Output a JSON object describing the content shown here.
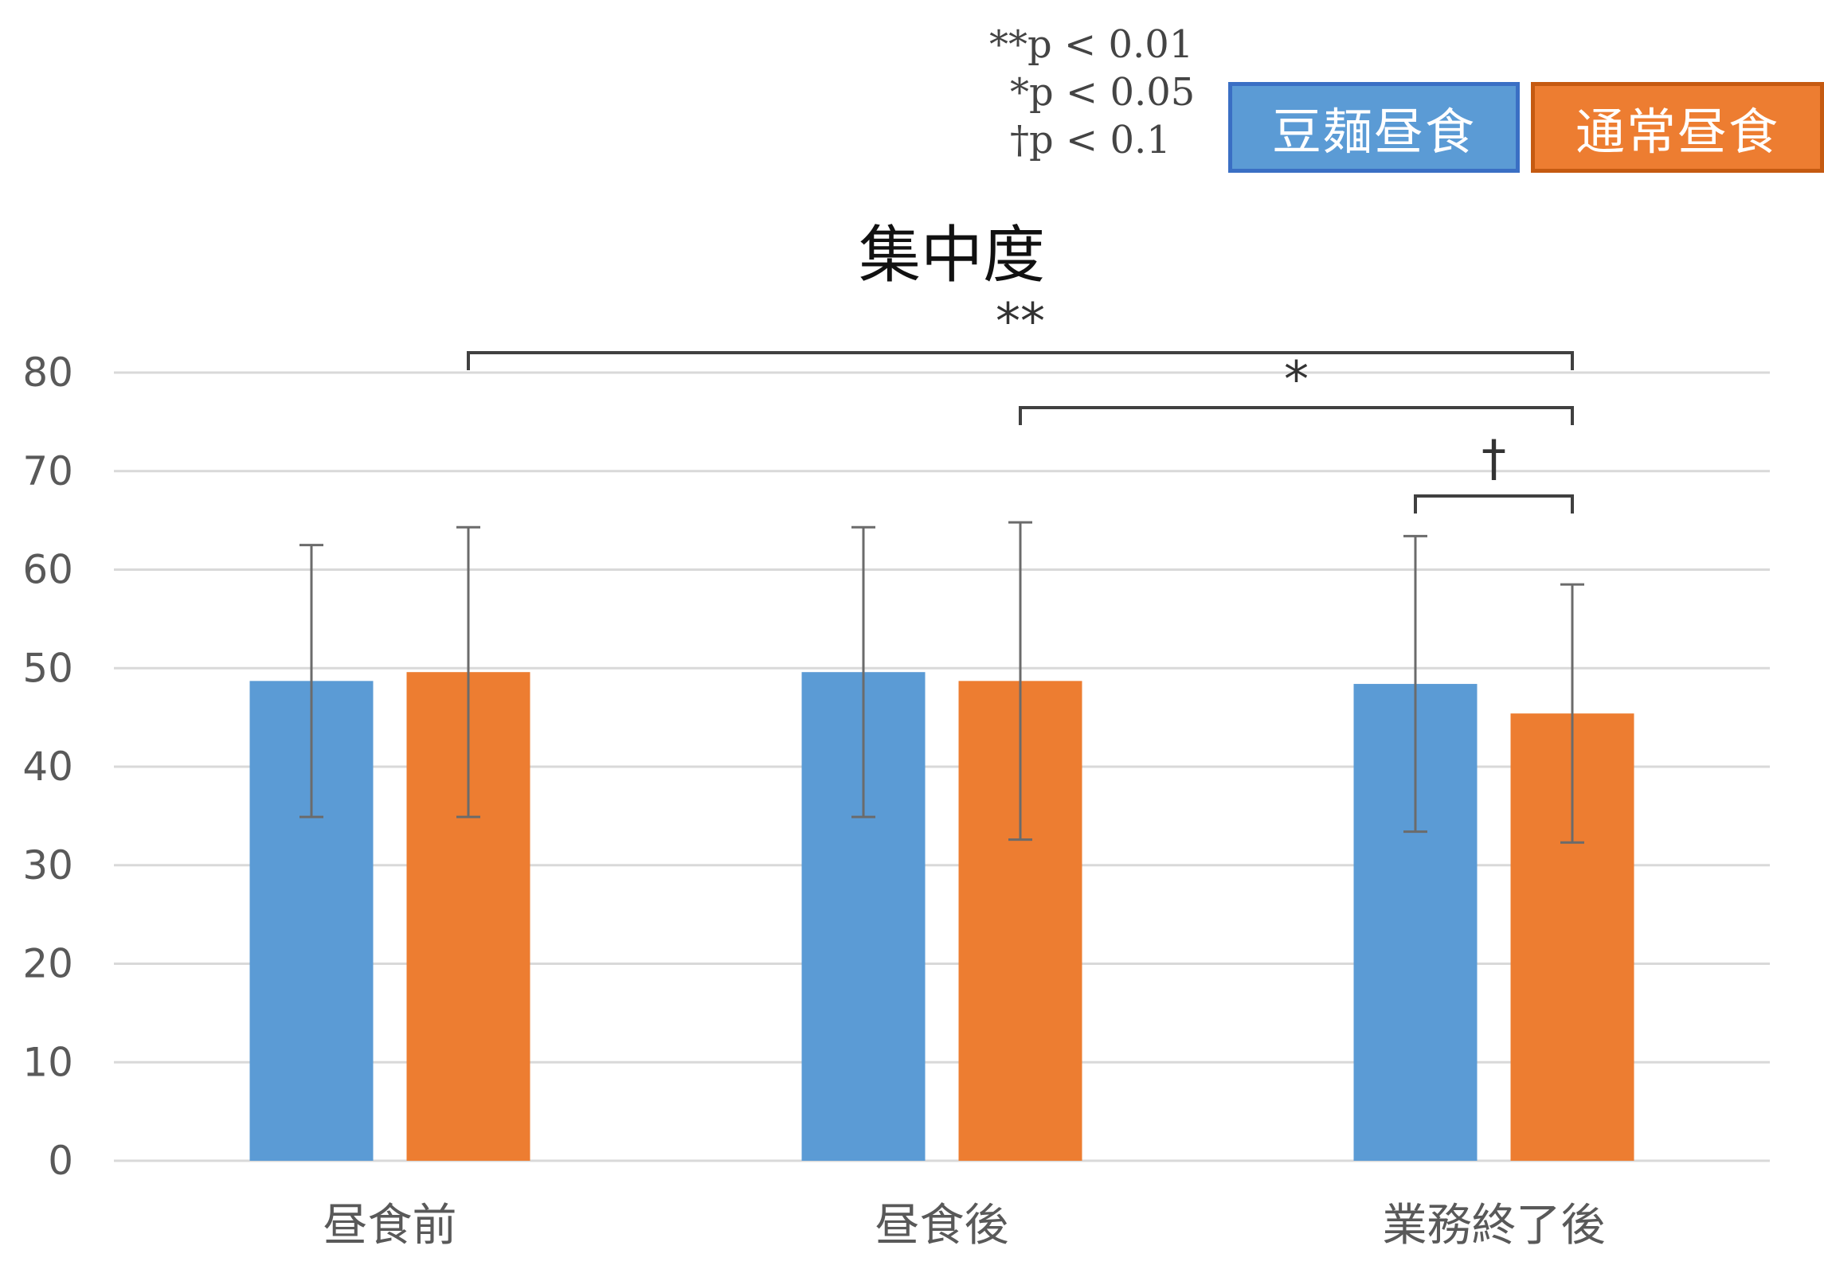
{
  "legend": {
    "items": [
      {
        "label": "豆麺昼食",
        "color": "#5b9bd5"
      },
      {
        "label": "通常昼食",
        "color": "#ed7d31"
      }
    ]
  },
  "significance_notes": [
    "**p < 0.01",
    "*p < 0.05",
    "†p < 0.1"
  ],
  "chart_data": {
    "type": "bar",
    "title": "集中度",
    "categories": [
      "昼食前",
      "昼食後",
      "業務終了後"
    ],
    "series": [
      {
        "name": "豆麺昼食",
        "color": "#5b9bd5",
        "values": [
          48.7,
          49.6,
          48.4
        ],
        "error": [
          13.8,
          14.7,
          15.0
        ]
      },
      {
        "name": "通常昼食",
        "color": "#ed7d31",
        "values": [
          49.6,
          48.7,
          45.4
        ],
        "error": [
          14.7,
          16.1,
          13.1
        ]
      }
    ],
    "ylim": [
      0,
      80
    ],
    "yticks": [
      0,
      10,
      20,
      30,
      40,
      50,
      60,
      70,
      80
    ],
    "grid": true,
    "brackets": [
      {
        "label": "**",
        "from": {
          "category": 0,
          "series": 1
        },
        "to": {
          "category": 2,
          "series": 1
        }
      },
      {
        "label": "*",
        "from": {
          "category": 1,
          "series": 1
        },
        "to": {
          "category": 2,
          "series": 1
        }
      },
      {
        "label": "†",
        "from": {
          "category": 2,
          "series": 0
        },
        "to": {
          "category": 2,
          "series": 1
        }
      }
    ]
  }
}
